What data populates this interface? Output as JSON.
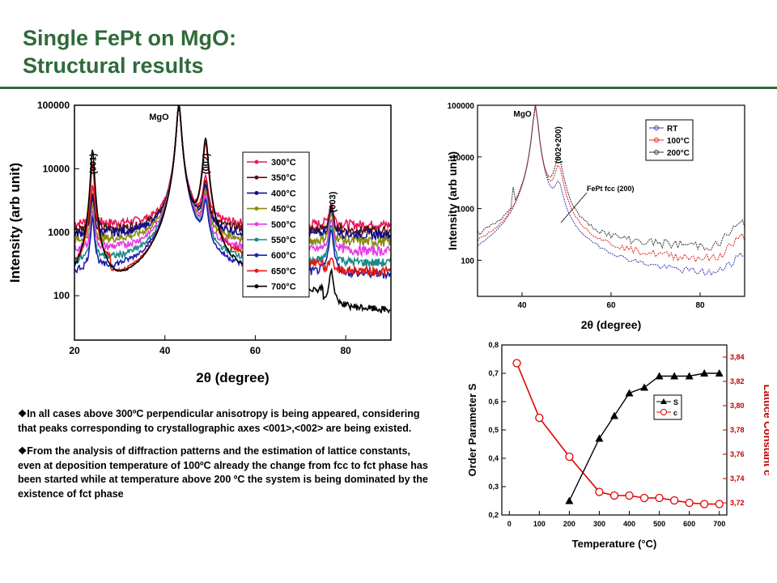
{
  "slide": {
    "title_line1": "Single FePt on MgO:",
    "title_line2": "Structural results",
    "accent_color": "#2f6b3a"
  },
  "bullets": [
    {
      "marker": "❖",
      "text": "In all cases above 300ºC perpendicular anisotropy is being appeared, considering that peaks corresponding to crystallographic axes <001>,<002> are being existed."
    },
    {
      "marker": "❖",
      "text": "From the analysis of diffraction patterns and the estimation of lattice constants, even at deposition temperature of 100ºC already the change from fcc to fct phase has been started while at temperature above 200 ºC the system is being dominated by the existence of fct phase"
    }
  ],
  "chart_data": [
    {
      "type": "line",
      "xlabel": "2θ (degree)",
      "ylabel": "Intensity (arb unit)",
      "xlim": [
        20,
        90
      ],
      "ylim": [
        20,
        100000
      ],
      "yscale": "log",
      "xticks": [
        "20",
        "40",
        "60",
        "80"
      ],
      "yticks": [
        "100",
        "1000",
        "10000",
        "100000"
      ],
      "peak_labels": [
        {
          "text": "(001)",
          "x": 24
        },
        {
          "text": "MgO",
          "x": 43
        },
        {
          "text": "(002)",
          "x": 49
        },
        {
          "text": "(003)",
          "x": 77
        }
      ],
      "legend_position": "right",
      "series": [
        {
          "name": "700°C",
          "color": "#000000",
          "baseline": 45,
          "peak001": 20000,
          "peak002": 30000,
          "peak003": 180
        },
        {
          "name": "650°C",
          "color": "#e8190f",
          "baseline": 230,
          "peak001": 12000,
          "peak002": 25000,
          "peak003": 150
        },
        {
          "name": "600°C",
          "color": "#1f1fb0",
          "baseline": 210,
          "peak001": 1500,
          "peak002": 2500,
          "peak003": 900
        },
        {
          "name": "550°C",
          "color": "#1a8a8a",
          "baseline": 320,
          "peak001": 1500,
          "peak002": 2500,
          "peak003": 1000
        },
        {
          "name": "500°C",
          "color": "#e83be8",
          "baseline": 500,
          "peak001": 1700,
          "peak002": 3000,
          "peak003": 1100
        },
        {
          "name": "450°C",
          "color": "#8a8a10",
          "baseline": 700,
          "peak001": 2000,
          "peak002": 3500,
          "peak003": 1200
        },
        {
          "name": "400°C",
          "color": "#10108a",
          "baseline": 900,
          "peak001": 2500,
          "peak002": 4000,
          "peak003": 1300
        },
        {
          "name": "350°C",
          "color": "#5a1010",
          "baseline": 1050,
          "peak001": 3000,
          "peak002": 5000,
          "peak003": 1400
        },
        {
          "name": "300°C",
          "color": "#e8185a",
          "baseline": 1300,
          "peak001": 4000,
          "peak002": 6000,
          "peak003": 1600
        }
      ]
    },
    {
      "type": "line",
      "xlabel": "2θ (degree)",
      "ylabel": "Intensity (arb unit)",
      "xlim": [
        30,
        90
      ],
      "ylim": [
        20,
        100000
      ],
      "yscale": "log",
      "xticks": [
        "40",
        "60",
        "80"
      ],
      "yticks": [
        "100",
        "1000",
        "10000",
        "100000"
      ],
      "peak_labels": [
        {
          "text": "MgO",
          "x": 43
        },
        {
          "text": "(002+200)",
          "x": 48
        }
      ],
      "annotation": "FePt fcc (200)",
      "legend_position": "top-right",
      "series": [
        {
          "name": "RT",
          "color": "#3a3ab0",
          "baseline": 40,
          "peak": 2500
        },
        {
          "name": "100°C",
          "color": "#e82020",
          "baseline": 90,
          "peak": 6000
        },
        {
          "name": "200°C",
          "color": "#303030",
          "baseline": 170,
          "peak": 9000
        }
      ]
    },
    {
      "type": "line",
      "xlabel": "Temperature (°C)",
      "ylabel": "Order Parameter S",
      "y2label": "Lattice Constant c",
      "xlim": [
        0,
        700
      ],
      "ylim": [
        0.2,
        0.8
      ],
      "y2lim": [
        3.71,
        3.85
      ],
      "xticks": [
        "0",
        "100",
        "200",
        "300",
        "400",
        "500",
        "600",
        "700"
      ],
      "yticks": [
        "0,2",
        "0,3",
        "0,4",
        "0,5",
        "0,6",
        "0,7",
        "0,8"
      ],
      "y2ticks": [
        "3,72",
        "3,74",
        "3,76",
        "3,78",
        "3,80",
        "3,82",
        "3,84"
      ],
      "legend_position": "right",
      "series": [
        {
          "name": "S",
          "color": "#000000",
          "axis": "left",
          "x": [
            200,
            300,
            350,
            400,
            450,
            500,
            550,
            600,
            650,
            700
          ],
          "y": [
            0.25,
            0.47,
            0.55,
            0.63,
            0.65,
            0.69,
            0.69,
            0.69,
            0.7,
            0.7
          ]
        },
        {
          "name": "c",
          "color": "#e00000",
          "axis": "right",
          "x": [
            25,
            100,
            200,
            300,
            350,
            400,
            450,
            500,
            550,
            600,
            650,
            700
          ],
          "y": [
            3.835,
            3.79,
            3.758,
            3.729,
            3.726,
            3.726,
            3.724,
            3.724,
            3.722,
            3.72,
            3.719,
            3.719
          ]
        }
      ]
    }
  ]
}
